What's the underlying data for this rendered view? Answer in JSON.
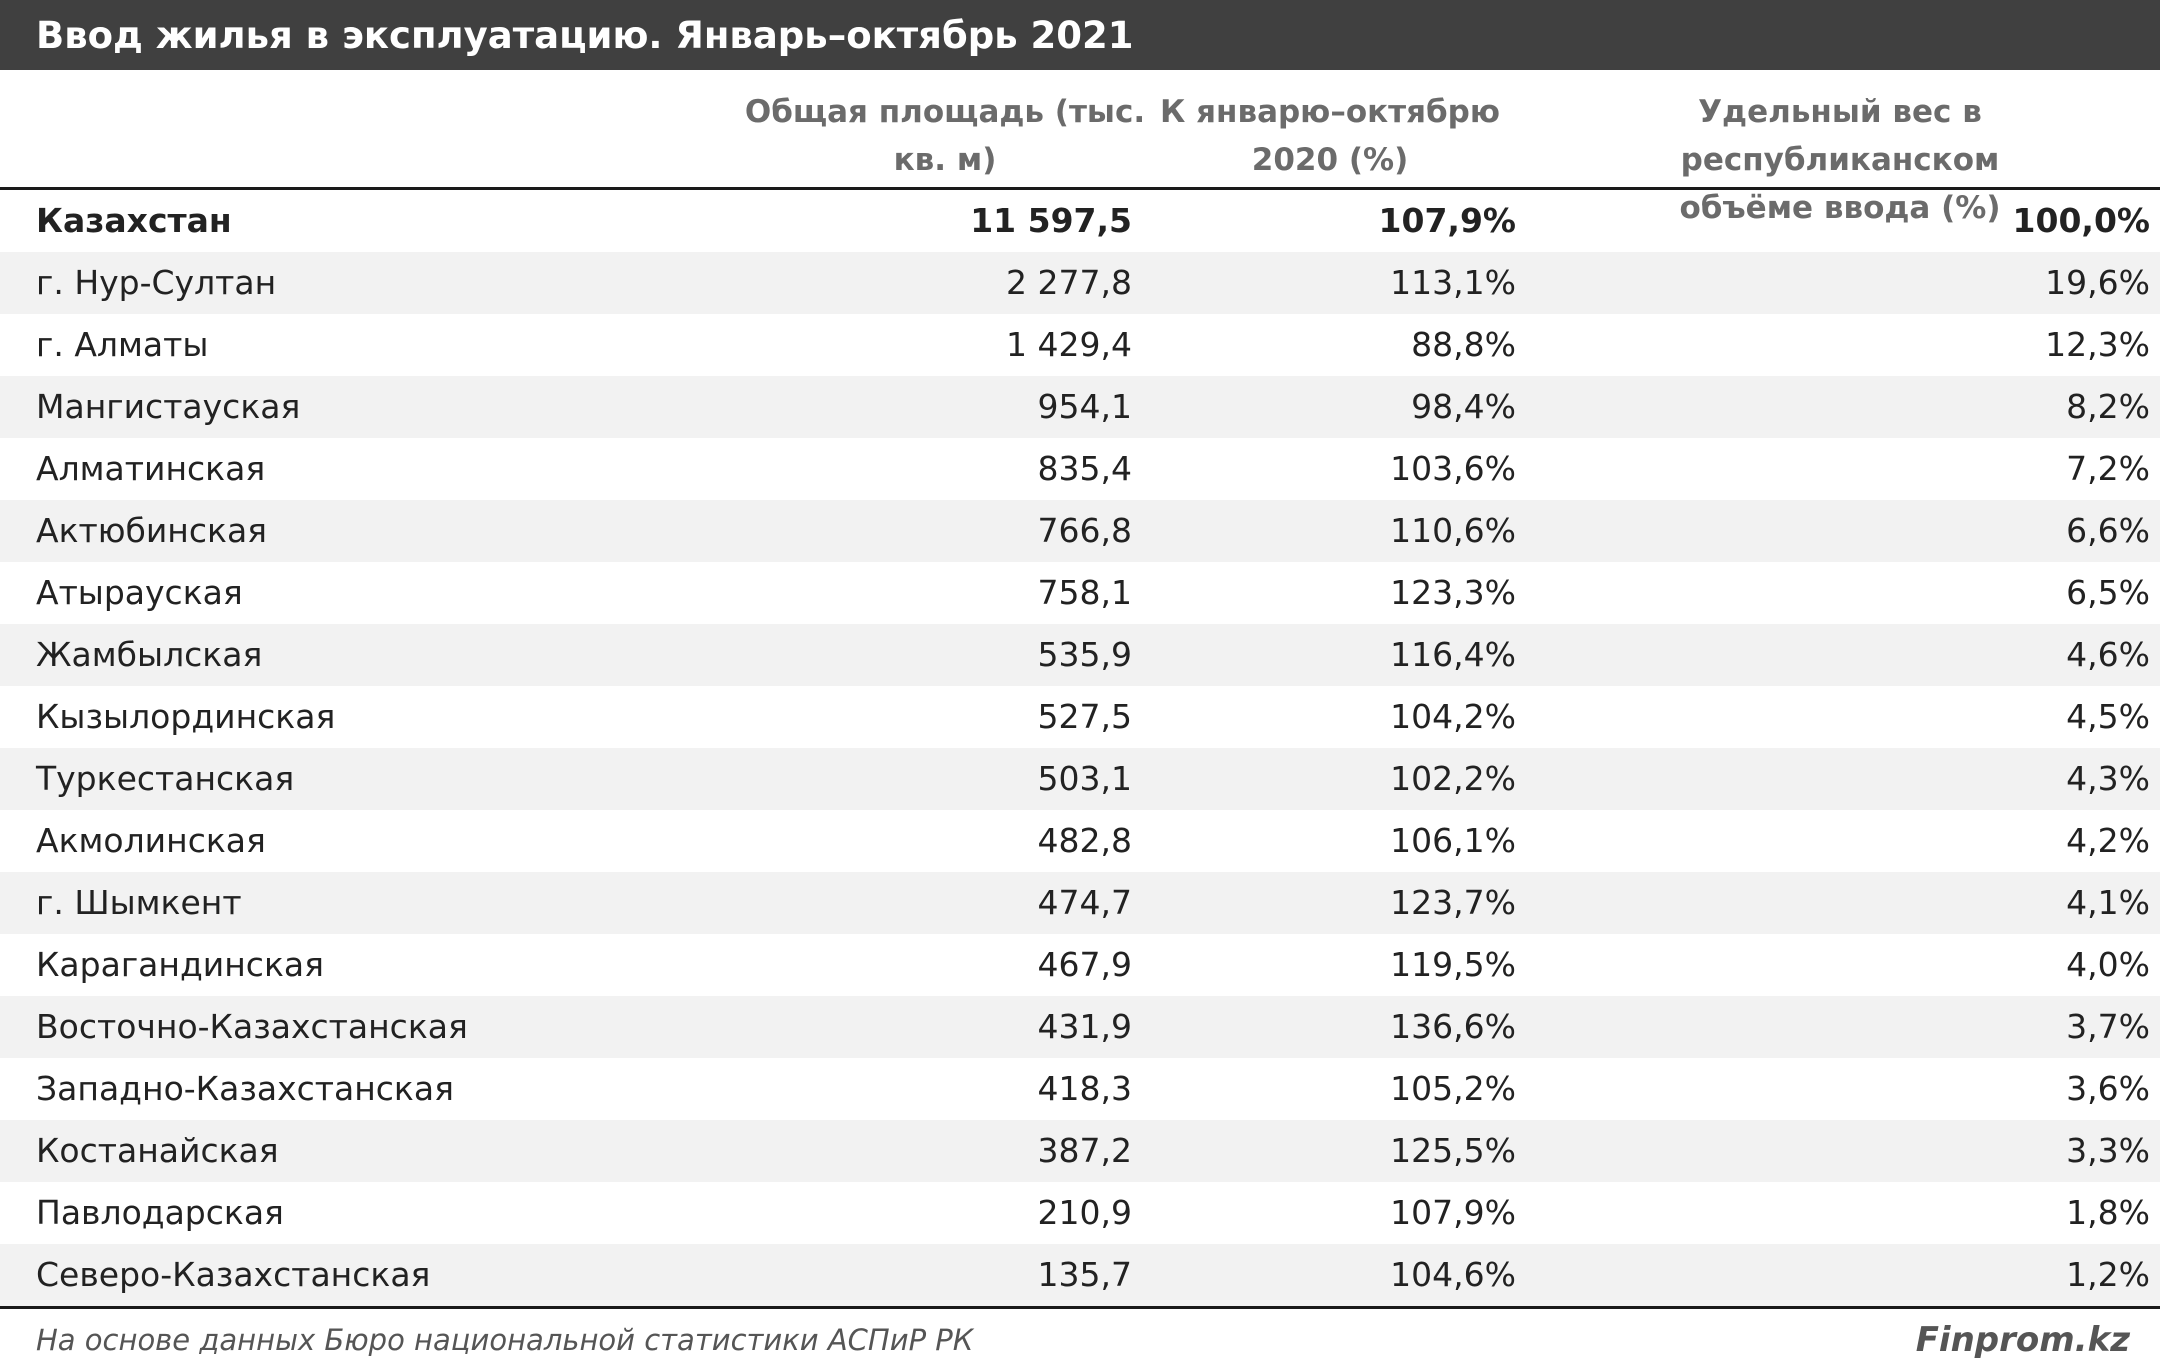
{
  "title": "Ввод жилья в эксплуатацию. Январь–октябрь 2021",
  "columns": {
    "area_line1": "Общая площадь (тыс.",
    "area_line2": "кв. м)",
    "growth_line1": "К январю–октябрю",
    "growth_line2": "2020 (%)",
    "share_line1": "Удельный вес в республиканском",
    "share_line2": "объёме ввода (%)"
  },
  "rows": [
    {
      "name": "Казахстан",
      "area": "11 597,5",
      "growth": "107,9%",
      "share": "100,0%"
    },
    {
      "name": "г. Нур-Султан",
      "area": "2 277,8",
      "growth": "113,1%",
      "share": "19,6%"
    },
    {
      "name": "г. Алматы",
      "area": "1 429,4",
      "growth": "88,8%",
      "share": "12,3%"
    },
    {
      "name": "Мангистауская",
      "area": "954,1",
      "growth": "98,4%",
      "share": "8,2%"
    },
    {
      "name": "Алматинская",
      "area": "835,4",
      "growth": "103,6%",
      "share": "7,2%"
    },
    {
      "name": "Актюбинская",
      "area": "766,8",
      "growth": "110,6%",
      "share": "6,6%"
    },
    {
      "name": "Атырауская",
      "area": "758,1",
      "growth": "123,3%",
      "share": "6,5%"
    },
    {
      "name": "Жамбылская",
      "area": "535,9",
      "growth": "116,4%",
      "share": "4,6%"
    },
    {
      "name": "Кызылординская",
      "area": "527,5",
      "growth": "104,2%",
      "share": "4,5%"
    },
    {
      "name": "Туркестанская",
      "area": "503,1",
      "growth": "102,2%",
      "share": "4,3%"
    },
    {
      "name": "Акмолинская",
      "area": "482,8",
      "growth": "106,1%",
      "share": "4,2%"
    },
    {
      "name": "г. Шымкент",
      "area": "474,7",
      "growth": "123,7%",
      "share": "4,1%"
    },
    {
      "name": "Карагандинская",
      "area": "467,9",
      "growth": "119,5%",
      "share": "4,0%"
    },
    {
      "name": "Восточно-Казахстанская",
      "area": "431,9",
      "growth": "136,6%",
      "share": "3,7%"
    },
    {
      "name": "Западно-Казахстанская",
      "area": "418,3",
      "growth": "105,2%",
      "share": "3,6%"
    },
    {
      "name": "Костанайская",
      "area": "387,2",
      "growth": "125,5%",
      "share": "3,3%"
    },
    {
      "name": "Павлодарская",
      "area": "210,9",
      "growth": "107,9%",
      "share": "1,8%"
    },
    {
      "name": "Северо-Казахстанская",
      "area": "135,7",
      "growth": "104,6%",
      "share": "1,2%"
    }
  ],
  "footer": {
    "source": "На основе данных Бюро национальной статистики АСПиР РК",
    "brand": "Finprom.kz"
  }
}
